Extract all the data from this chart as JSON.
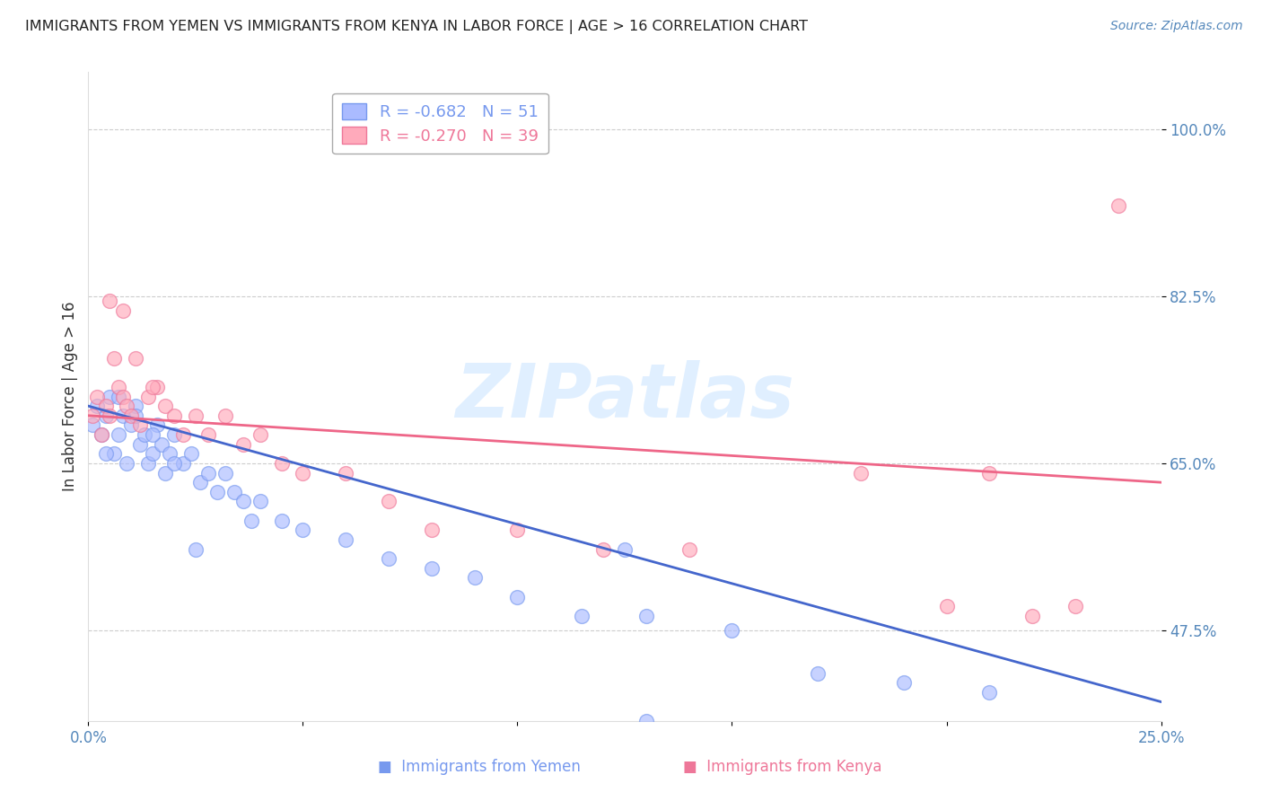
{
  "title": "IMMIGRANTS FROM YEMEN VS IMMIGRANTS FROM KENYA IN LABOR FORCE | AGE > 16 CORRELATION CHART",
  "source": "Source: ZipAtlas.com",
  "ylabel_label": "In Labor Force | Age > 16",
  "xlim": [
    0.0,
    0.25
  ],
  "ylim": [
    0.38,
    1.06
  ],
  "ytick_values": [
    0.475,
    0.65,
    0.825,
    1.0
  ],
  "ytick_labels": [
    "47.5%",
    "65.0%",
    "82.5%",
    "100.0%"
  ],
  "xtick_values": [
    0.0,
    0.05,
    0.1,
    0.15,
    0.2,
    0.25
  ],
  "xtick_labels": [
    "0.0%",
    "",
    "",
    "",
    "",
    "25.0%"
  ],
  "watermark": "ZIPatlas",
  "legend1_R": "-0.682",
  "legend1_N": "51",
  "legend2_R": "-0.270",
  "legend2_N": "39",
  "blue_face": "#aabbff",
  "blue_edge": "#7799ee",
  "pink_face": "#ffaabb",
  "pink_edge": "#ee7799",
  "blue_line_color": "#4466cc",
  "pink_line_color": "#ee6688",
  "title_color": "#222222",
  "source_color": "#5588bb",
  "tick_color": "#5588bb",
  "ylabel_color": "#333333",
  "grid_color": "#cccccc",
  "watermark_color": "#bbddff",
  "bottom_label_blue": "#7799ee",
  "bottom_label_pink": "#ee7799",
  "yemen_x": [
    0.001,
    0.002,
    0.003,
    0.004,
    0.005,
    0.006,
    0.007,
    0.008,
    0.009,
    0.01,
    0.011,
    0.012,
    0.013,
    0.014,
    0.015,
    0.016,
    0.017,
    0.018,
    0.019,
    0.02,
    0.022,
    0.024,
    0.026,
    0.028,
    0.03,
    0.032,
    0.034,
    0.036,
    0.038,
    0.04,
    0.045,
    0.05,
    0.06,
    0.07,
    0.08,
    0.09,
    0.1,
    0.115,
    0.13,
    0.15,
    0.17,
    0.19,
    0.21,
    0.125,
    0.004,
    0.007,
    0.011,
    0.015,
    0.02,
    0.025,
    0.13
  ],
  "yemen_y": [
    0.69,
    0.71,
    0.68,
    0.7,
    0.72,
    0.66,
    0.68,
    0.7,
    0.65,
    0.69,
    0.71,
    0.67,
    0.68,
    0.65,
    0.66,
    0.69,
    0.67,
    0.64,
    0.66,
    0.68,
    0.65,
    0.66,
    0.63,
    0.64,
    0.62,
    0.64,
    0.62,
    0.61,
    0.59,
    0.61,
    0.59,
    0.58,
    0.57,
    0.55,
    0.54,
    0.53,
    0.51,
    0.49,
    0.49,
    0.475,
    0.43,
    0.42,
    0.41,
    0.56,
    0.66,
    0.72,
    0.7,
    0.68,
    0.65,
    0.56,
    0.38
  ],
  "kenya_x": [
    0.001,
    0.002,
    0.003,
    0.004,
    0.005,
    0.006,
    0.007,
    0.008,
    0.009,
    0.01,
    0.012,
    0.014,
    0.016,
    0.018,
    0.02,
    0.022,
    0.025,
    0.028,
    0.032,
    0.036,
    0.04,
    0.045,
    0.05,
    0.06,
    0.07,
    0.08,
    0.1,
    0.12,
    0.14,
    0.005,
    0.008,
    0.011,
    0.015,
    0.22,
    0.23,
    0.24,
    0.21,
    0.2,
    0.18
  ],
  "kenya_y": [
    0.7,
    0.72,
    0.68,
    0.71,
    0.7,
    0.76,
    0.73,
    0.72,
    0.71,
    0.7,
    0.69,
    0.72,
    0.73,
    0.71,
    0.7,
    0.68,
    0.7,
    0.68,
    0.7,
    0.67,
    0.68,
    0.65,
    0.64,
    0.64,
    0.61,
    0.58,
    0.58,
    0.56,
    0.56,
    0.82,
    0.81,
    0.76,
    0.73,
    0.49,
    0.5,
    0.92,
    0.64,
    0.5,
    0.64
  ],
  "blue_trend_x": [
    0.0,
    0.25
  ],
  "blue_trend_y": [
    0.71,
    0.4
  ],
  "pink_trend_x": [
    0.0,
    0.25
  ],
  "pink_trend_y": [
    0.7,
    0.63
  ]
}
